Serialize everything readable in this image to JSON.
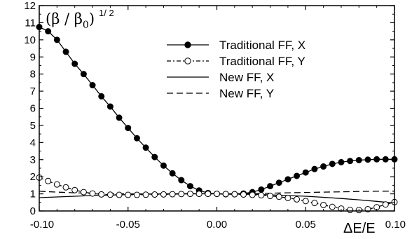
{
  "chart_data": {
    "type": "line",
    "title": "",
    "ylabel": {
      "main": "(β / β",
      "sub": "0",
      "close": ")",
      "sup": "1/ 2"
    },
    "xlabel": "ΔE/E",
    "xlim": [
      -0.1,
      0.1
    ],
    "ylim": [
      0,
      12
    ],
    "x_ticks": [
      -0.1,
      -0.05,
      0.0,
      0.05,
      0.1
    ],
    "x_tick_labels": [
      "-0.10",
      "-0.05",
      "0.00",
      "0.05",
      "0.10"
    ],
    "y_ticks": [
      0,
      1,
      2,
      3,
      4,
      5,
      6,
      7,
      8,
      9,
      10,
      11,
      12
    ],
    "y_tick_labels": [
      "0",
      "1",
      "2",
      "3",
      "4",
      "5",
      "6",
      "7",
      "8",
      "9",
      "10",
      "11",
      "12"
    ],
    "grid": false,
    "legend_position": "top-right",
    "series": [
      {
        "name": "Traditional FF, X",
        "style": "solid-filled-circles",
        "x": [
          -0.1,
          -0.095,
          -0.09,
          -0.085,
          -0.08,
          -0.075,
          -0.07,
          -0.065,
          -0.06,
          -0.055,
          -0.05,
          -0.045,
          -0.04,
          -0.035,
          -0.03,
          -0.025,
          -0.02,
          -0.015,
          -0.01,
          -0.005,
          0.0,
          0.005,
          0.01,
          0.015,
          0.02,
          0.025,
          0.03,
          0.035,
          0.04,
          0.045,
          0.05,
          0.055,
          0.06,
          0.065,
          0.07,
          0.075,
          0.08,
          0.085,
          0.09,
          0.095,
          0.1
        ],
        "y": [
          10.75,
          10.5,
          10.0,
          9.3,
          8.6,
          8.0,
          7.35,
          6.7,
          6.1,
          5.45,
          4.85,
          4.25,
          3.7,
          3.15,
          2.65,
          2.2,
          1.8,
          1.45,
          1.2,
          1.05,
          1.0,
          0.98,
          0.98,
          1.02,
          1.1,
          1.25,
          1.45,
          1.65,
          1.85,
          2.05,
          2.25,
          2.45,
          2.6,
          2.75,
          2.85,
          2.92,
          2.97,
          3.0,
          3.02,
          3.02,
          3.02
        ]
      },
      {
        "name": "Traditional FF, Y",
        "style": "dash-dot-open-circles",
        "x": [
          -0.1,
          -0.095,
          -0.09,
          -0.085,
          -0.08,
          -0.075,
          -0.07,
          -0.065,
          -0.06,
          -0.055,
          -0.05,
          -0.045,
          -0.04,
          -0.035,
          -0.03,
          -0.025,
          -0.02,
          -0.015,
          -0.01,
          -0.005,
          0.0,
          0.005,
          0.01,
          0.015,
          0.02,
          0.025,
          0.03,
          0.035,
          0.04,
          0.045,
          0.05,
          0.055,
          0.06,
          0.065,
          0.07,
          0.075,
          0.08,
          0.085,
          0.09,
          0.095,
          0.1
        ],
        "y": [
          1.95,
          1.75,
          1.55,
          1.38,
          1.22,
          1.1,
          1.02,
          0.97,
          0.95,
          0.94,
          0.94,
          0.94,
          0.95,
          0.96,
          0.97,
          0.98,
          0.99,
          1.0,
          1.0,
          1.0,
          1.0,
          0.99,
          0.98,
          0.96,
          0.94,
          0.92,
          0.88,
          0.83,
          0.76,
          0.68,
          0.58,
          0.47,
          0.35,
          0.24,
          0.14,
          0.06,
          0.05,
          0.1,
          0.22,
          0.38,
          0.52
        ]
      },
      {
        "name": "New FF, X",
        "style": "solid",
        "x": [
          -0.1,
          -0.09,
          -0.08,
          -0.07,
          -0.06,
          -0.05,
          -0.04,
          -0.03,
          -0.02,
          -0.01,
          0.0,
          0.01,
          0.02,
          0.03,
          0.04,
          0.05,
          0.06,
          0.07,
          0.08,
          0.09,
          0.1
        ],
        "y": [
          0.78,
          0.82,
          0.86,
          0.9,
          0.93,
          0.96,
          0.98,
          1.0,
          1.01,
          1.01,
          1.0,
          0.99,
          0.97,
          0.94,
          0.9,
          0.86,
          0.8,
          0.73,
          0.65,
          0.56,
          0.46
        ]
      },
      {
        "name": "New FF, Y",
        "style": "dashed",
        "x": [
          -0.1,
          -0.09,
          -0.08,
          -0.07,
          -0.06,
          -0.05,
          -0.04,
          -0.03,
          -0.02,
          -0.01,
          0.0,
          0.01,
          0.02,
          0.03,
          0.04,
          0.05,
          0.06,
          0.07,
          0.08,
          0.09,
          0.1
        ],
        "y": [
          1.15,
          1.1,
          1.06,
          1.03,
          1.01,
          1.0,
          0.99,
          0.99,
          0.99,
          1.0,
          1.0,
          1.01,
          1.02,
          1.04,
          1.06,
          1.08,
          1.1,
          1.12,
          1.14,
          1.15,
          1.16
        ]
      }
    ]
  }
}
